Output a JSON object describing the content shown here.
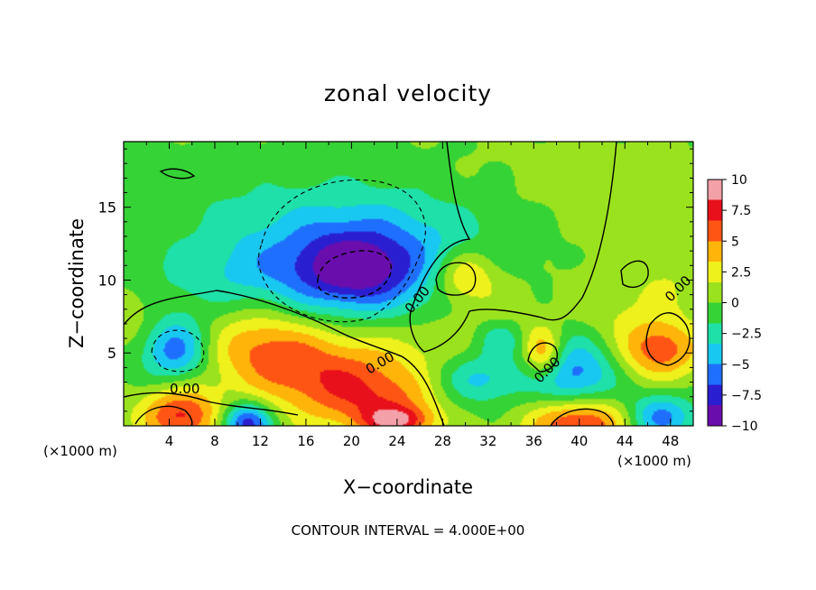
{
  "chart_data": {
    "type": "heatmap",
    "title": "zonal velocity",
    "xlabel": "X−coordinate",
    "ylabel": "Z−coordinate",
    "x_unit_left": "(×1000 m)",
    "x_unit_right": "(×1000 m)",
    "xlim": [
      0,
      50
    ],
    "ylim": [
      0,
      19.5
    ],
    "x_ticks": [
      4,
      8,
      12,
      16,
      20,
      24,
      28,
      32,
      36,
      40,
      44,
      48
    ],
    "x_tick_labels": [
      "4",
      "8",
      "12",
      "16",
      "20",
      "24",
      "28",
      "32",
      "36",
      "40",
      "44",
      "48"
    ],
    "y_ticks": [
      5,
      10,
      15
    ],
    "y_tick_labels": [
      "5",
      "10",
      "15"
    ],
    "colorbar": {
      "min": -10,
      "max": 10,
      "ticks": [
        10,
        7.5,
        5,
        2.5,
        0,
        -2.5,
        -5,
        -7.5,
        -10
      ],
      "tick_labels": [
        "10",
        "7.5",
        "5",
        "2.5",
        "0",
        "−2.5",
        "−5",
        "−7.5",
        "−10"
      ],
      "colors": [
        "#6a0dad",
        "#2a1fd0",
        "#1f6fff",
        "#19c8f0",
        "#1ee0a8",
        "#35d335",
        "#9be21e",
        "#eef11c",
        "#ffb40a",
        "#ff5514",
        "#e8101a",
        "#f4a0a8"
      ]
    },
    "contour_labels": [
      "0.00",
      "0.00",
      "0.00",
      "0.00",
      "0.00"
    ],
    "footer": "CONTOUR INTERVAL = 4.000E+00",
    "field_blobs": [
      {
        "x": 20.5,
        "z": 11.2,
        "rx": 12,
        "rz": 4.8,
        "v": -6.5
      },
      {
        "x": 20.2,
        "z": 10.8,
        "rx": 4.6,
        "rz": 2.4,
        "v": -4.5
      },
      {
        "x": 20.0,
        "z": 10.9,
        "rx": 1.6,
        "rz": 0.8,
        "v": -3
      },
      {
        "x": 36,
        "z": 16,
        "rx": 12,
        "rz": 4,
        "v": 0.6
      },
      {
        "x": 45,
        "z": 12,
        "rx": 8,
        "rz": 6,
        "v": 0.4
      },
      {
        "x": 5,
        "z": 16,
        "rx": 8,
        "rz": 3,
        "v": -0.6
      },
      {
        "x": 8,
        "z": 10.5,
        "rx": 8,
        "rz": 2.2,
        "v": -1.2
      },
      {
        "x": 29.8,
        "z": 10.3,
        "rx": 2.8,
        "rz": 1.9,
        "v": 5.2
      },
      {
        "x": 4.5,
        "z": 5.2,
        "rx": 3,
        "rz": 2.2,
        "v": -6
      },
      {
        "x": 12,
        "z": 5.5,
        "rx": 5,
        "rz": 2.8,
        "v": 4.5
      },
      {
        "x": 18,
        "z": 3.0,
        "rx": 6,
        "rz": 2.8,
        "v": 4.5
      },
      {
        "x": 23,
        "z": 1.5,
        "rx": 5,
        "rz": 2.2,
        "v": 4
      },
      {
        "x": 24,
        "z": 0.3,
        "rx": 3,
        "rz": 1.0,
        "v": 6
      },
      {
        "x": 5,
        "z": 0.7,
        "rx": 3.5,
        "rz": 2.0,
        "v": 7
      },
      {
        "x": 10.8,
        "z": 0.2,
        "rx": 2.2,
        "rz": 1.4,
        "v": -8
      },
      {
        "x": 20,
        "z": 5.5,
        "rx": 9,
        "rz": 3.2,
        "v": 2.5
      },
      {
        "x": 31,
        "z": 3.2,
        "rx": 4,
        "rz": 1.8,
        "v": -4
      },
      {
        "x": 33,
        "z": 6.0,
        "rx": 2,
        "rz": 1.2,
        "v": -3
      },
      {
        "x": 36.8,
        "z": 5,
        "rx": 1.8,
        "rz": 1.8,
        "v": 6
      },
      {
        "x": 39.5,
        "z": 3.5,
        "rx": 4,
        "rz": 2.8,
        "v": -6
      },
      {
        "x": 40,
        "z": 0.3,
        "rx": 4.5,
        "rz": 1.8,
        "v": 8
      },
      {
        "x": 47,
        "z": 5.2,
        "rx": 3.5,
        "rz": 2.0,
        "v": 6
      },
      {
        "x": 47,
        "z": 0.6,
        "rx": 3,
        "rz": 1.6,
        "v": -6
      },
      {
        "x": 42.5,
        "z": 8,
        "rx": 4,
        "rz": 3,
        "v": 1.5
      },
      {
        "x": 33,
        "z": 8.5,
        "rx": 4,
        "rz": 3,
        "v": 1.8
      },
      {
        "x": 27,
        "z": 6,
        "rx": 4,
        "rz": 3,
        "v": 1.2
      },
      {
        "x": 48,
        "z": 10,
        "rx": 3,
        "rz": 3,
        "v": 1.2
      },
      {
        "x": 1,
        "z": 7.5,
        "rx": 2.5,
        "rz": 2.5,
        "v": 1.5
      }
    ]
  }
}
